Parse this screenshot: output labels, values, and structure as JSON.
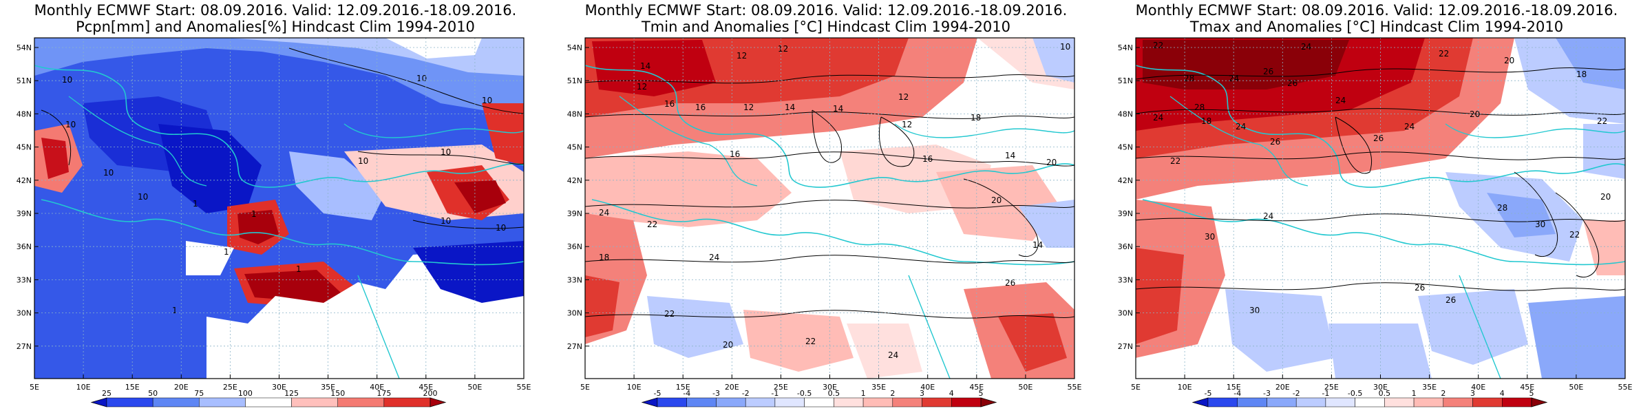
{
  "panels": [
    {
      "title_line1": "Monthly ECMWF Start: 08.09.2016. Valid: 12.09.2016.-18.09.2016.",
      "title_line2": "Pcpn[mm] and Anomalies[%] Hindcast Clim 1994-2010",
      "field": "precipitation-anomaly",
      "colorbar": {
        "ticks": [
          "25",
          "50",
          "75",
          "100",
          "125",
          "150",
          "175",
          "200"
        ],
        "colors": [
          "#0a16c6",
          "#2a48ee",
          "#5e86f4",
          "#a8beff",
          "#ffffff",
          "#ffc0bc",
          "#f47a72",
          "#e0302a",
          "#a8000c"
        ]
      },
      "contour_labels": [
        "10",
        "10",
        "10",
        "10",
        "10",
        "10",
        "10",
        "10",
        "10",
        "10",
        "1",
        "1",
        "1",
        "1",
        "1"
      ]
    },
    {
      "title_line1": "Monthly ECMWF Start: 08.09.2016. Valid: 12.09.2016.-18.09.2016.",
      "title_line2": "Tmin and Anomalies [°C] Hindcast Clim 1994-2010",
      "field": "tmin-anomaly",
      "colorbar": {
        "ticks": [
          "-5",
          "-4",
          "-3",
          "-2",
          "-1",
          "-0.5",
          "0.5",
          "1",
          "2",
          "3",
          "4",
          "5"
        ],
        "colors": [
          "#0a16c6",
          "#2a48ee",
          "#5e86f4",
          "#8aa8fa",
          "#bcccff",
          "#e0e6ff",
          "#ffffff",
          "#ffe0de",
          "#ffbcb6",
          "#f4817a",
          "#e03a32",
          "#c00010",
          "#8a0008"
        ]
      },
      "contour_labels": [
        "14",
        "12",
        "12",
        "12",
        "16",
        "16",
        "12",
        "14",
        "14",
        "12",
        "10",
        "12",
        "16",
        "16",
        "14",
        "20",
        "20",
        "24",
        "22",
        "18",
        "24",
        "22",
        "20",
        "22",
        "24",
        "26",
        "14",
        "18"
      ]
    },
    {
      "title_line1": "Monthly ECMWF Start: 08.09.2016. Valid: 12.09.2016.-18.09.2016.",
      "title_line2": "Tmax and Anomalies [°C] Hindcast Clim 1994-2010",
      "field": "tmax-anomaly",
      "colorbar": {
        "ticks": [
          "-5",
          "-4",
          "-3",
          "-2",
          "-1",
          "-0.5",
          "0.5",
          "1",
          "2",
          "3",
          "4",
          "5"
        ],
        "colors": [
          "#0a16c6",
          "#2a48ee",
          "#5e86f4",
          "#8aa8fa",
          "#bcccff",
          "#e0e6ff",
          "#ffffff",
          "#ffe0de",
          "#ffbcb6",
          "#f4817a",
          "#e03a32",
          "#c00010",
          "#8a0008"
        ]
      },
      "contour_labels": [
        "22",
        "24",
        "24",
        "22",
        "20",
        "18",
        "28",
        "26",
        "26",
        "24",
        "28",
        "24",
        "22",
        "18",
        "24",
        "26",
        "26",
        "24",
        "20",
        "22",
        "30",
        "24",
        "26",
        "28",
        "30",
        "26",
        "30",
        "22",
        "20"
      ]
    }
  ],
  "map_axes": {
    "lat_labels": [
      "54N",
      "51N",
      "48N",
      "45N",
      "42N",
      "39N",
      "36N",
      "33N",
      "30N",
      "27N"
    ],
    "lon_labels": [
      "5E",
      "10E",
      "15E",
      "20E",
      "25E",
      "30E",
      "35E",
      "40E",
      "45E",
      "50E",
      "55E"
    ]
  }
}
